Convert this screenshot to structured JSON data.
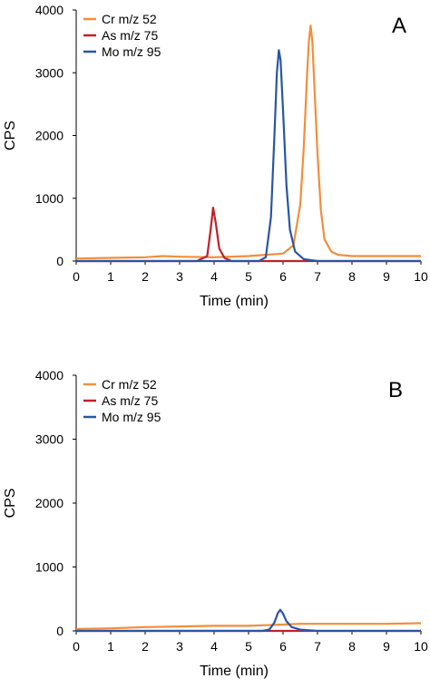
{
  "chart_data": [
    {
      "type": "line",
      "panel_label": "A",
      "xlabel": "Time (min)",
      "ylabel": "CPS",
      "xlim": [
        0,
        10
      ],
      "ylim": [
        0,
        4000
      ],
      "x_ticks": [
        "0",
        "1",
        "2",
        "3",
        "4",
        "5",
        "6",
        "7",
        "8",
        "9",
        "10"
      ],
      "y_ticks": [
        "0",
        "1000",
        "2000",
        "3000",
        "4000"
      ],
      "grid": false,
      "legend_position": "top-left",
      "series": [
        {
          "name": "Cr m/z 52",
          "color": "#f28e3c",
          "x": [
            0,
            1,
            2,
            2.5,
            3,
            4,
            5,
            5.5,
            6.0,
            6.3,
            6.5,
            6.6,
            6.7,
            6.75,
            6.8,
            6.85,
            6.9,
            7.0,
            7.1,
            7.2,
            7.4,
            7.6,
            8,
            9,
            10
          ],
          "y": [
            40,
            50,
            60,
            80,
            70,
            60,
            80,
            100,
            120,
            250,
            900,
            1800,
            3000,
            3500,
            3750,
            3500,
            2900,
            1700,
            800,
            350,
            150,
            100,
            80,
            80,
            80
          ]
        },
        {
          "name": "As m/z 75",
          "color": "#c0202a",
          "x": [
            0,
            3.5,
            3.8,
            3.9,
            3.97,
            4.05,
            4.15,
            4.3,
            4.5,
            10
          ],
          "y": [
            0,
            0,
            80,
            500,
            850,
            600,
            200,
            50,
            0,
            0
          ]
        },
        {
          "name": "Mo m/z 95",
          "color": "#2a55a5",
          "x": [
            0,
            5.3,
            5.5,
            5.65,
            5.75,
            5.82,
            5.88,
            5.93,
            6.0,
            6.1,
            6.2,
            6.35,
            6.6,
            7.0,
            10
          ],
          "y": [
            0,
            0,
            60,
            700,
            2000,
            3000,
            3360,
            3200,
            2400,
            1200,
            500,
            150,
            30,
            0,
            0
          ]
        }
      ]
    },
    {
      "type": "line",
      "panel_label": "B",
      "xlabel": "Time (min)",
      "ylabel": "CPS",
      "xlim": [
        0,
        10
      ],
      "ylim": [
        0,
        4000
      ],
      "x_ticks": [
        "0",
        "1",
        "2",
        "3",
        "4",
        "5",
        "6",
        "7",
        "8",
        "9",
        "10"
      ],
      "y_ticks": [
        "0",
        "1000",
        "2000",
        "3000",
        "4000"
      ],
      "grid": false,
      "legend_position": "top-left",
      "series": [
        {
          "name": "Cr m/z 52",
          "color": "#f28e3c",
          "x": [
            0,
            1,
            2,
            3,
            4,
            5,
            5.5,
            6,
            6.5,
            7,
            8,
            9,
            10
          ],
          "y": [
            30,
            40,
            60,
            70,
            80,
            80,
            90,
            100,
            110,
            110,
            110,
            110,
            120
          ]
        },
        {
          "name": "As m/z 75",
          "color": "#c0202a",
          "x": [
            0,
            10
          ],
          "y": [
            0,
            0
          ]
        },
        {
          "name": "Mo m/z 95",
          "color": "#2a55a5",
          "x": [
            0,
            5.4,
            5.6,
            5.75,
            5.85,
            5.92,
            6.0,
            6.1,
            6.25,
            6.5,
            7.0,
            10
          ],
          "y": [
            0,
            0,
            20,
            130,
            280,
            330,
            270,
            150,
            60,
            20,
            0,
            0
          ]
        }
      ]
    }
  ]
}
